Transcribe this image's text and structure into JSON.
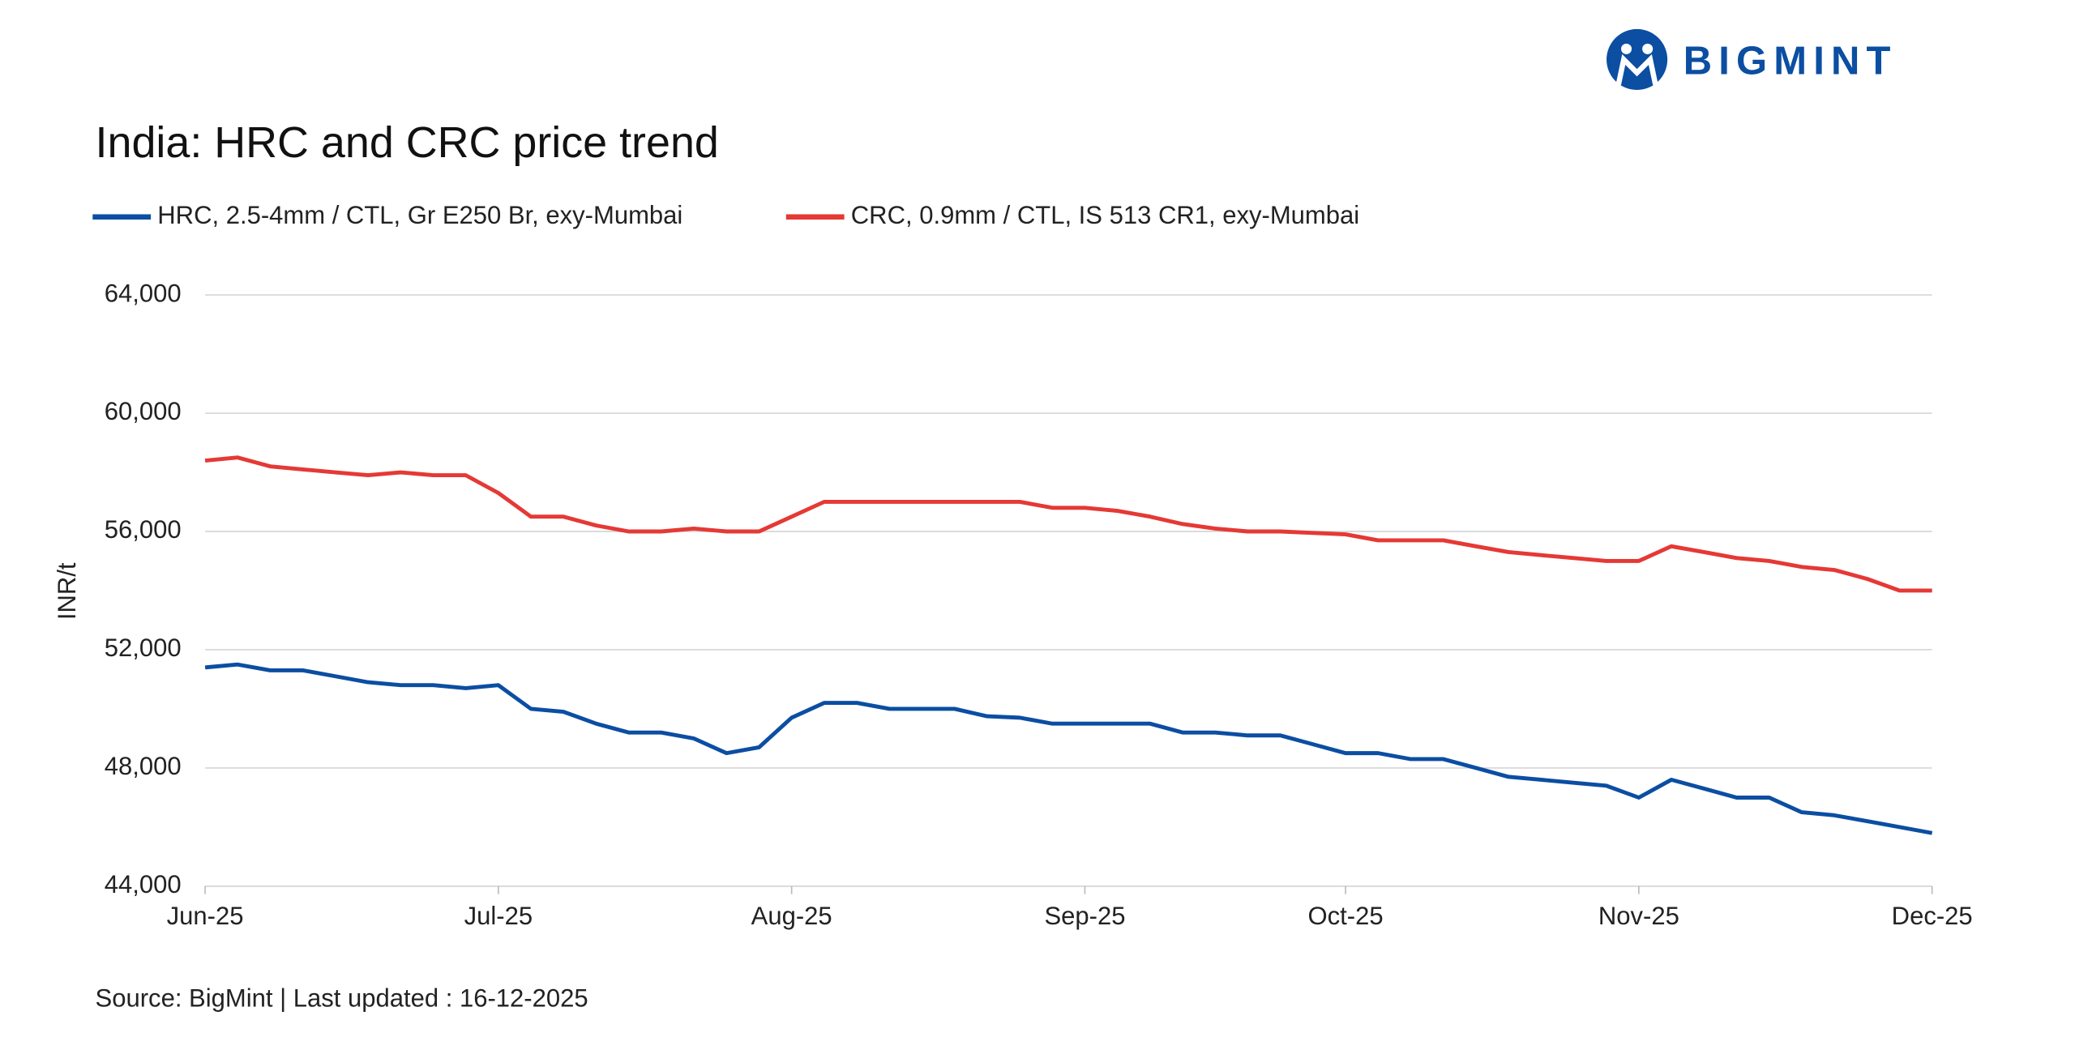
{
  "logo": "BIGMINT",
  "chart_data": {
    "type": "line",
    "title": "India: HRC and CRC price trend",
    "y_label": "INR/t",
    "source": "Source: BigMint | Last updated : 16-12-2025",
    "categories": [
      "Jun-25",
      null,
      null,
      null,
      null,
      null,
      null,
      null,
      null,
      "Jul-25",
      null,
      null,
      null,
      null,
      null,
      null,
      null,
      null,
      "Aug-25",
      null,
      null,
      null,
      null,
      null,
      null,
      null,
      null,
      "Sep-25",
      null,
      null,
      null,
      null,
      null,
      null,
      null,
      "Oct-25",
      null,
      null,
      null,
      null,
      null,
      null,
      null,
      null,
      "Nov-25",
      null,
      null,
      null,
      null,
      null,
      null,
      null,
      null,
      "Dec-25"
    ],
    "series": [
      {
        "name": "HRC, 2.5-4mm / CTL, Gr E250 Br, exy-Mumbai",
        "color": "#0b4ea2",
        "values": [
          51400,
          51500,
          51300,
          51300,
          51100,
          50900,
          50800,
          50800,
          50700,
          50800,
          50000,
          49900,
          49500,
          49200,
          49200,
          49000,
          48500,
          48700,
          49700,
          50200,
          50200,
          50000,
          50000,
          50000,
          49750,
          49700,
          49500,
          49500,
          49500,
          49500,
          49200,
          49200,
          49100,
          49100,
          48800,
          48500,
          48500,
          48300,
          48300,
          48000,
          47700,
          47600,
          47500,
          47400,
          47000,
          47600,
          47300,
          47000,
          47000,
          46500,
          46400,
          46200,
          46000,
          45800
        ]
      },
      {
        "name": "CRC, 0.9mm / CTL, IS 513 CR1, exy-Mumbai",
        "color": "#e53935",
        "values": [
          58400,
          58500,
          58200,
          58100,
          58000,
          57900,
          58000,
          57900,
          57900,
          57300,
          56500,
          56500,
          56200,
          56000,
          56000,
          56100,
          56000,
          56000,
          56500,
          57000,
          57000,
          57000,
          57000,
          57000,
          57000,
          57000,
          56800,
          56800,
          56700,
          56500,
          56250,
          56100,
          56000,
          56000,
          55950,
          55900,
          55700,
          55700,
          55700,
          55500,
          55300,
          55200,
          55100,
          55000,
          55000,
          55500,
          55300,
          55100,
          55000,
          54800,
          54700,
          54400,
          54000,
          54000
        ]
      }
    ],
    "ylim": [
      44000,
      64000
    ],
    "yticks": [
      {
        "value": 44000,
        "label": "44,000"
      },
      {
        "value": 48000,
        "label": "48,000"
      },
      {
        "value": 52000,
        "label": "52,000"
      },
      {
        "value": 56000,
        "label": "56,000"
      },
      {
        "value": 60000,
        "label": "60,000"
      },
      {
        "value": 64000,
        "label": "64,000"
      }
    ],
    "grid": true
  }
}
